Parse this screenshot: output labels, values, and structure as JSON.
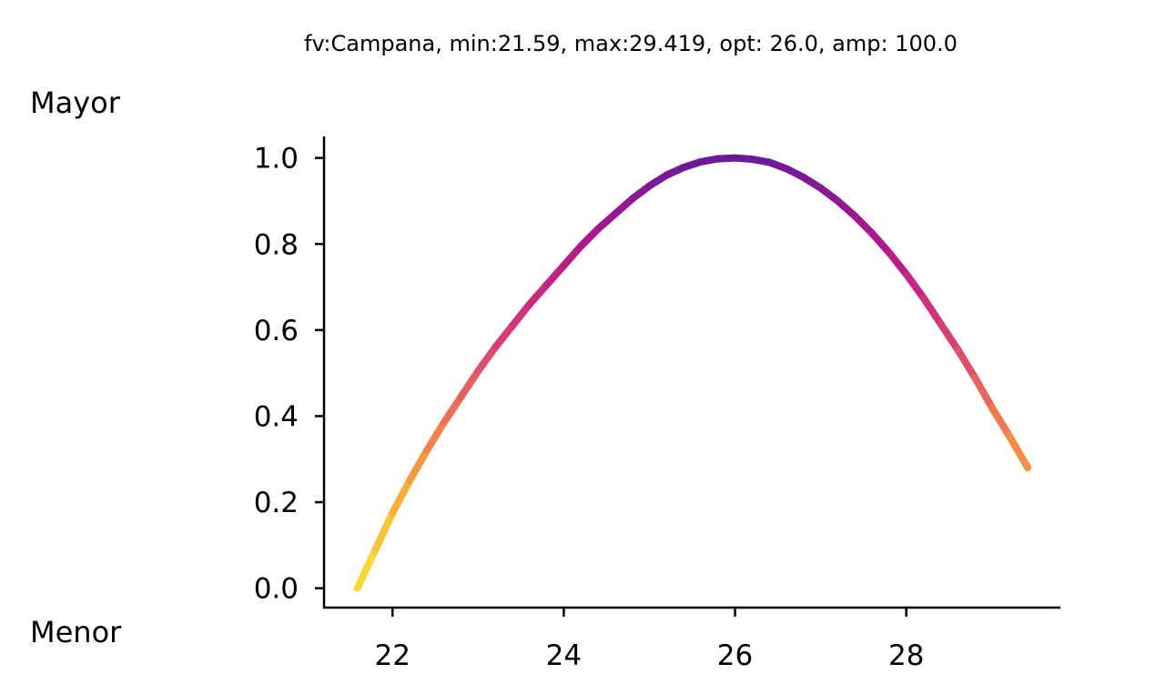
{
  "chart_data": {
    "type": "line",
    "title": "fv:Campana, min:21.59, max:29.419, opt: 26.0, amp: 100.0",
    "xlabel": "",
    "ylabel": "",
    "top_label": "Mayor",
    "bottom_label": "Menor",
    "xlim": [
      21.2,
      29.8
    ],
    "ylim": [
      -0.045,
      1.05
    ],
    "xticks": [
      22,
      24,
      26,
      28
    ],
    "xtick_labels": [
      "22",
      "24",
      "26",
      "28"
    ],
    "yticks": [
      0.0,
      0.2,
      0.4,
      0.6,
      0.8,
      1.0
    ],
    "ytick_labels": [
      "0.0",
      "0.2",
      "0.4",
      "0.6",
      "0.8",
      "1.0"
    ],
    "grid": false,
    "legend": "none",
    "colormap": "plasma (color by value: high = purple, low = yellow)",
    "colors": {
      "low": "#fce338",
      "mid_low": "#f0744f",
      "mid_high": "#cd1f8a",
      "high": "#6a1a9a"
    },
    "series": [
      {
        "x": [
          21.59,
          21.8,
          22.0,
          22.2,
          22.4,
          22.6,
          22.8,
          23.0,
          23.2,
          23.4,
          23.6,
          23.8,
          24.0,
          24.2,
          24.4,
          24.6,
          24.8,
          25.0,
          25.2,
          25.4,
          25.6,
          25.8,
          26.0,
          26.2,
          26.4,
          26.6,
          26.8,
          27.0,
          27.2,
          27.4,
          27.6,
          27.8,
          28.0,
          28.2,
          28.4,
          28.6,
          28.8,
          29.0,
          29.2,
          29.419
        ],
        "y": [
          0.0,
          0.09,
          0.175,
          0.25,
          0.32,
          0.385,
          0.445,
          0.505,
          0.56,
          0.61,
          0.66,
          0.705,
          0.75,
          0.795,
          0.835,
          0.87,
          0.905,
          0.935,
          0.96,
          0.978,
          0.991,
          0.998,
          1.0,
          0.997,
          0.99,
          0.975,
          0.955,
          0.93,
          0.9,
          0.865,
          0.825,
          0.78,
          0.73,
          0.675,
          0.615,
          0.555,
          0.49,
          0.42,
          0.355,
          0.28
        ]
      }
    ]
  }
}
